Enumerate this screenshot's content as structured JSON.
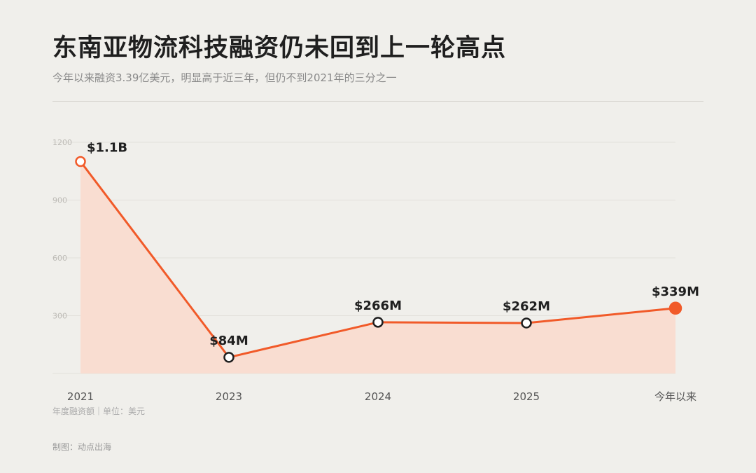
{
  "header": {
    "title": "东南亚物流科技融资仍未回到上一轮高点",
    "subtitle": "今年以来融资3.39亿美元，明显高于近三年，但仍不到2021年的三分之一"
  },
  "chart_data": {
    "type": "area",
    "categories": [
      "2021",
      "2023",
      "2024",
      "2025",
      "今年以来"
    ],
    "values": [
      1100,
      84,
      266,
      262,
      339
    ],
    "data_labels": [
      "$1.1B",
      "$84M",
      "$266M",
      "$262M",
      "$339M"
    ],
    "y_ticks": [
      "1200",
      "900",
      "600",
      "300"
    ],
    "ylim": [
      0,
      1200
    ],
    "grid": true,
    "line_color": "#f15a29",
    "fill_color": "#f9ddd1",
    "text_color": "#1f1f1f"
  },
  "footer": {
    "note": "年度融资额｜单位：美元",
    "credit": "制图：动点出海"
  }
}
